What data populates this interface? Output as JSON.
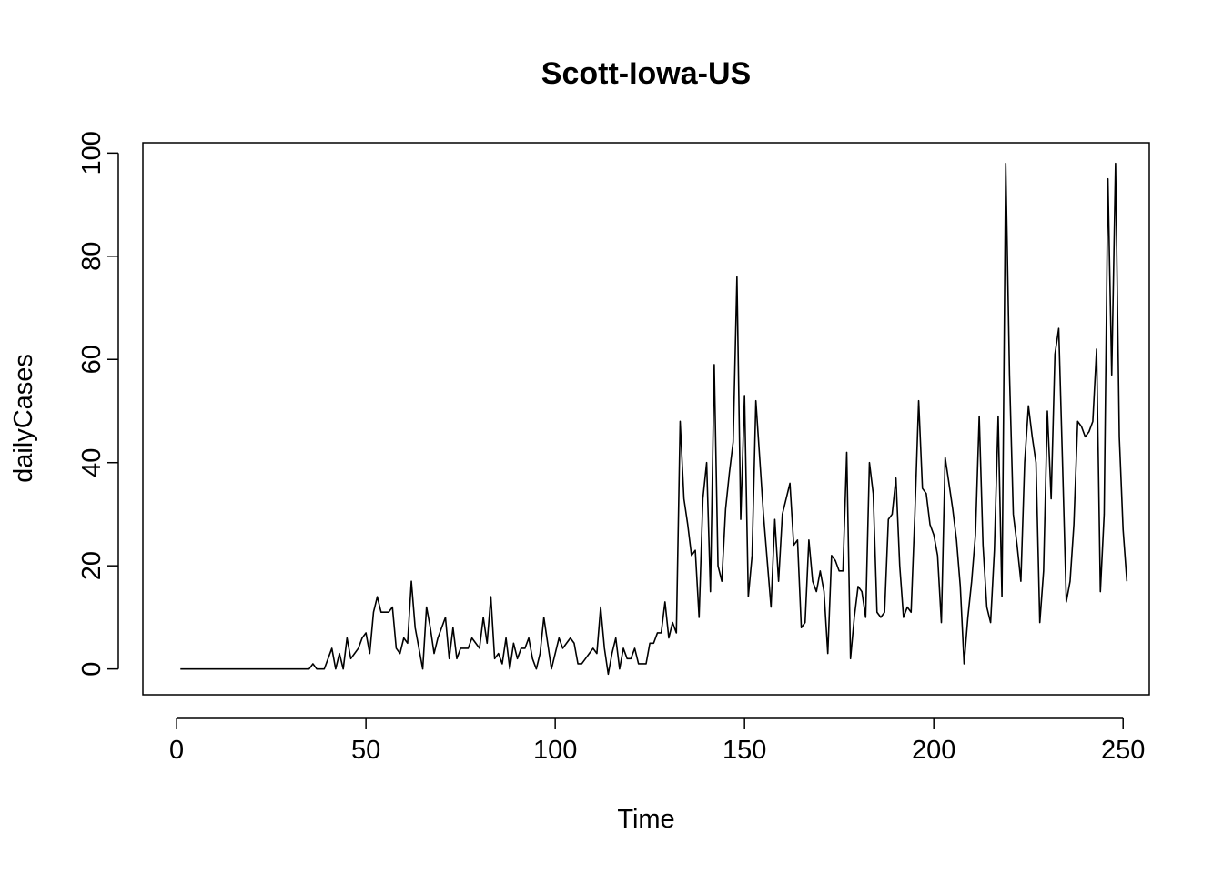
{
  "chart_data": {
    "type": "line",
    "title": "Scott-Iowa-US",
    "xlabel": "Time",
    "ylabel": "dailyCases",
    "xlim": [
      -8.92,
      256.92
    ],
    "ylim": [
      -5,
      102
    ],
    "x_ticks": [
      0,
      50,
      100,
      150,
      200,
      250
    ],
    "y_ticks": [
      0,
      20,
      40,
      60,
      80,
      100
    ],
    "grid": false,
    "series": [
      {
        "values": [
          0,
          0,
          0,
          0,
          0,
          0,
          0,
          0,
          0,
          0,
          0,
          0,
          0,
          0,
          0,
          0,
          0,
          0,
          0,
          0,
          0,
          0,
          0,
          0,
          0,
          0,
          0,
          0,
          0,
          0,
          0,
          0,
          0,
          0,
          0,
          1,
          0,
          0,
          0,
          2,
          4,
          0,
          3,
          0,
          6,
          2,
          3,
          4,
          6,
          7,
          3,
          11,
          14,
          11,
          11,
          11,
          12,
          4,
          3,
          6,
          5,
          17,
          8,
          4,
          0,
          12,
          8,
          3,
          6,
          8,
          10,
          2,
          8,
          2,
          4,
          4,
          4,
          6,
          5,
          4,
          10,
          5,
          14,
          2,
          3,
          1,
          6,
          0,
          5,
          2,
          4,
          4,
          6,
          2,
          0,
          3,
          10,
          5,
          0,
          3,
          6,
          4,
          5,
          6,
          5,
          1,
          1,
          2,
          3,
          4,
          3,
          12,
          4,
          -1,
          3,
          6,
          0,
          4,
          2,
          2,
          4,
          1,
          1,
          1,
          5,
          5,
          7,
          7,
          13,
          6,
          9,
          7,
          48,
          33,
          28,
          22,
          23,
          10,
          33,
          40,
          15,
          59,
          20,
          17,
          31,
          38,
          44,
          76,
          29,
          53,
          14,
          22,
          52,
          41,
          30,
          21,
          12,
          29,
          17,
          30,
          33,
          36,
          24,
          25,
          8,
          9,
          25,
          17,
          15,
          19,
          15,
          3,
          22,
          21,
          19,
          19,
          42,
          2,
          10,
          16,
          15,
          10,
          40,
          34,
          11,
          10,
          11,
          29,
          30,
          37,
          20,
          10,
          12,
          11,
          30,
          52,
          35,
          34,
          28,
          26,
          22,
          9,
          41,
          36,
          31,
          25,
          16,
          1,
          10,
          17,
          26,
          49,
          24,
          12,
          9,
          23,
          49,
          14,
          98,
          57,
          30,
          24,
          17,
          40,
          51,
          45,
          40,
          9,
          19,
          50,
          33,
          61,
          66,
          40,
          13,
          17,
          28,
          48,
          47,
          45,
          46,
          48,
          62,
          15,
          30,
          95,
          57,
          98,
          45,
          27,
          17
        ]
      }
    ]
  }
}
